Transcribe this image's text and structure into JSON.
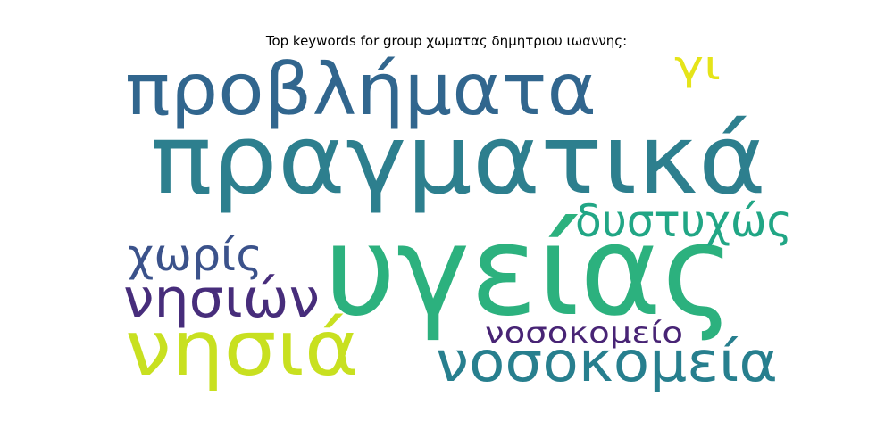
{
  "title": "Top keywords for group χωματας δημητριου ιωαννης:",
  "words": [
    {
      "text": "πραγματικά",
      "color": "#2d7f8e"
    },
    {
      "text": "υγείας",
      "color": "#2cb17e"
    },
    {
      "text": "προβλήματα",
      "color": "#31668e"
    },
    {
      "text": "νησιά",
      "color": "#c8e020"
    },
    {
      "text": "νοσοκομεία",
      "color": "#277f8e"
    },
    {
      "text": "νησιών",
      "color": "#472d7b"
    },
    {
      "text": "δυστυχώς",
      "color": "#21a685"
    },
    {
      "text": "χωρίς",
      "color": "#3b528b"
    },
    {
      "text": "νοσοκομείο",
      "color": "#482475"
    },
    {
      "text": "γι",
      "color": "#e5e419"
    }
  ]
}
